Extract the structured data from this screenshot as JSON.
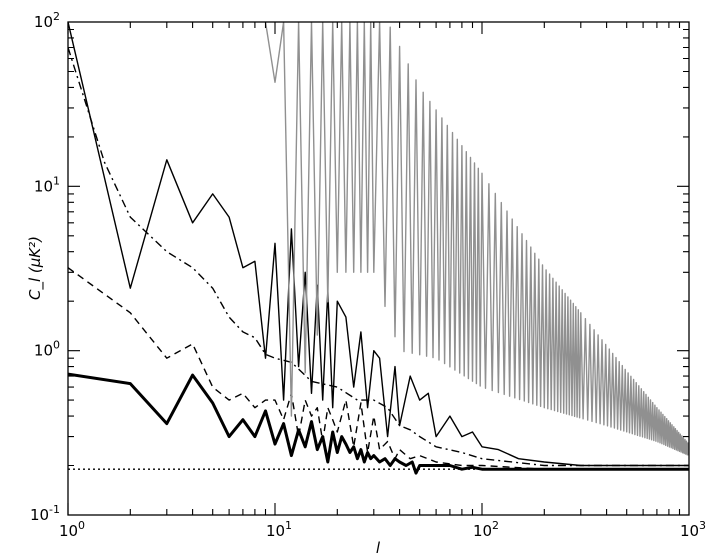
{
  "chart_data": {
    "type": "line",
    "xscale": "log",
    "yscale": "log",
    "xlim": [
      1,
      1000
    ],
    "ylim": [
      0.1,
      100
    ],
    "xlabel": "l",
    "ylabel": "C_l  (μK²)",
    "grid": false,
    "x_tick_labels": [
      {
        "value": 1,
        "mantissa": "10",
        "exp": "0"
      },
      {
        "value": 10,
        "mantissa": "10",
        "exp": "1"
      },
      {
        "value": 100,
        "mantissa": "10",
        "exp": "2"
      },
      {
        "value": 1000,
        "mantissa": "10",
        "exp": "3"
      }
    ],
    "y_tick_labels": [
      {
        "value": 0.1,
        "mantissa": "10",
        "exp": "-1"
      },
      {
        "value": 1,
        "mantissa": "10",
        "exp": "0"
      },
      {
        "value": 10,
        "mantissa": "10",
        "exp": "1"
      },
      {
        "value": 100,
        "mantissa": "10",
        "exp": "2"
      }
    ],
    "noise_floor": 0.19,
    "series": [
      {
        "style": "thin-solid",
        "color": "#000000",
        "x": [
          1,
          2,
          3,
          4,
          5,
          6,
          7,
          8,
          9,
          10,
          11,
          12,
          13,
          14,
          15,
          16,
          17,
          18,
          19,
          20,
          22,
          24,
          26,
          28,
          30,
          32,
          35,
          38,
          40,
          45,
          50,
          55,
          60,
          70,
          80,
          90,
          100,
          120,
          150,
          200,
          300,
          500,
          1000
        ],
        "y": [
          100,
          2.4,
          14.5,
          6.0,
          9.0,
          6.5,
          3.2,
          3.5,
          0.9,
          4.5,
          0.5,
          5.5,
          0.8,
          3.0,
          0.55,
          2.5,
          0.5,
          2.3,
          0.45,
          2.0,
          1.6,
          0.6,
          1.3,
          0.45,
          1.0,
          0.9,
          0.3,
          0.8,
          0.35,
          0.7,
          0.5,
          0.55,
          0.3,
          0.4,
          0.3,
          0.32,
          0.26,
          0.25,
          0.22,
          0.21,
          0.2,
          0.2,
          0.2
        ]
      },
      {
        "style": "dash-dot",
        "color": "#000000",
        "x": [
          1,
          1.5,
          2,
          3,
          4,
          5,
          6,
          7,
          8,
          9,
          10,
          12,
          15,
          20,
          25,
          30,
          35,
          40,
          45,
          50,
          60,
          80,
          100,
          200,
          500,
          1000
        ],
        "y": [
          70,
          14,
          6.5,
          4.0,
          3.2,
          2.4,
          1.6,
          1.3,
          1.2,
          0.95,
          0.9,
          0.85,
          0.65,
          0.6,
          0.5,
          0.5,
          0.45,
          0.35,
          0.33,
          0.3,
          0.26,
          0.24,
          0.22,
          0.2,
          0.2,
          0.2
        ]
      },
      {
        "style": "dashed",
        "color": "#000000",
        "x": [
          1,
          2,
          3,
          4,
          5,
          6,
          7,
          8,
          9,
          10,
          11,
          12,
          13,
          14,
          15,
          16,
          17,
          18,
          19,
          20,
          22,
          24,
          26,
          28,
          30,
          32,
          35,
          38,
          40,
          45,
          50,
          60,
          80,
          100,
          200,
          500,
          1000
        ],
        "y": [
          3.2,
          1.7,
          0.9,
          1.1,
          0.6,
          0.5,
          0.55,
          0.45,
          0.5,
          0.5,
          0.38,
          0.55,
          0.3,
          0.5,
          0.4,
          0.45,
          0.28,
          0.45,
          0.38,
          0.32,
          0.5,
          0.26,
          0.48,
          0.24,
          0.4,
          0.25,
          0.28,
          0.22,
          0.25,
          0.22,
          0.23,
          0.21,
          0.2,
          0.2,
          0.19,
          0.19,
          0.19
        ]
      },
      {
        "style": "thick-solid",
        "color": "#000000",
        "x": [
          1,
          2,
          3,
          4,
          5,
          6,
          7,
          8,
          9,
          10,
          11,
          12,
          13,
          14,
          15,
          16,
          17,
          18,
          19,
          20,
          21,
          22,
          23,
          24,
          25,
          26,
          27,
          28,
          29,
          30,
          32,
          34,
          36,
          38,
          40,
          43,
          46,
          48,
          50,
          55,
          60,
          70,
          80,
          90,
          100,
          120,
          150,
          200,
          300,
          500,
          1000
        ],
        "y": [
          0.72,
          0.63,
          0.36,
          0.71,
          0.48,
          0.3,
          0.38,
          0.3,
          0.43,
          0.27,
          0.36,
          0.23,
          0.33,
          0.26,
          0.37,
          0.25,
          0.3,
          0.21,
          0.32,
          0.24,
          0.3,
          0.27,
          0.24,
          0.26,
          0.22,
          0.25,
          0.21,
          0.24,
          0.22,
          0.23,
          0.21,
          0.22,
          0.2,
          0.22,
          0.21,
          0.2,
          0.21,
          0.18,
          0.2,
          0.2,
          0.2,
          0.2,
          0.19,
          0.195,
          0.19,
          0.19,
          0.19,
          0.19,
          0.19,
          0.19,
          0.19
        ]
      },
      {
        "style": "thin-solid",
        "color": "#909090",
        "x_range": [
          9,
          1000
        ],
        "envelope_high": [
          [
            9,
            100
          ],
          [
            25,
            100
          ],
          [
            35,
            100
          ],
          [
            50,
            40
          ],
          [
            100,
            12
          ],
          [
            200,
            3.2
          ],
          [
            300,
            1.7
          ],
          [
            500,
            0.75
          ],
          [
            700,
            0.45
          ],
          [
            1000,
            0.27
          ]
        ],
        "envelope_low": [
          [
            9,
            100
          ],
          [
            11,
            20
          ],
          [
            12,
            0.4
          ],
          [
            20,
            3
          ],
          [
            30,
            3
          ],
          [
            40,
            1
          ],
          [
            60,
            0.9
          ],
          [
            100,
            0.6
          ],
          [
            200,
            0.45
          ],
          [
            400,
            0.35
          ],
          [
            700,
            0.28
          ],
          [
            1000,
            0.23
          ]
        ]
      },
      {
        "style": "dotted",
        "color": "#000000",
        "x": [
          1,
          1000
        ],
        "y": [
          0.19,
          0.19
        ]
      }
    ]
  }
}
